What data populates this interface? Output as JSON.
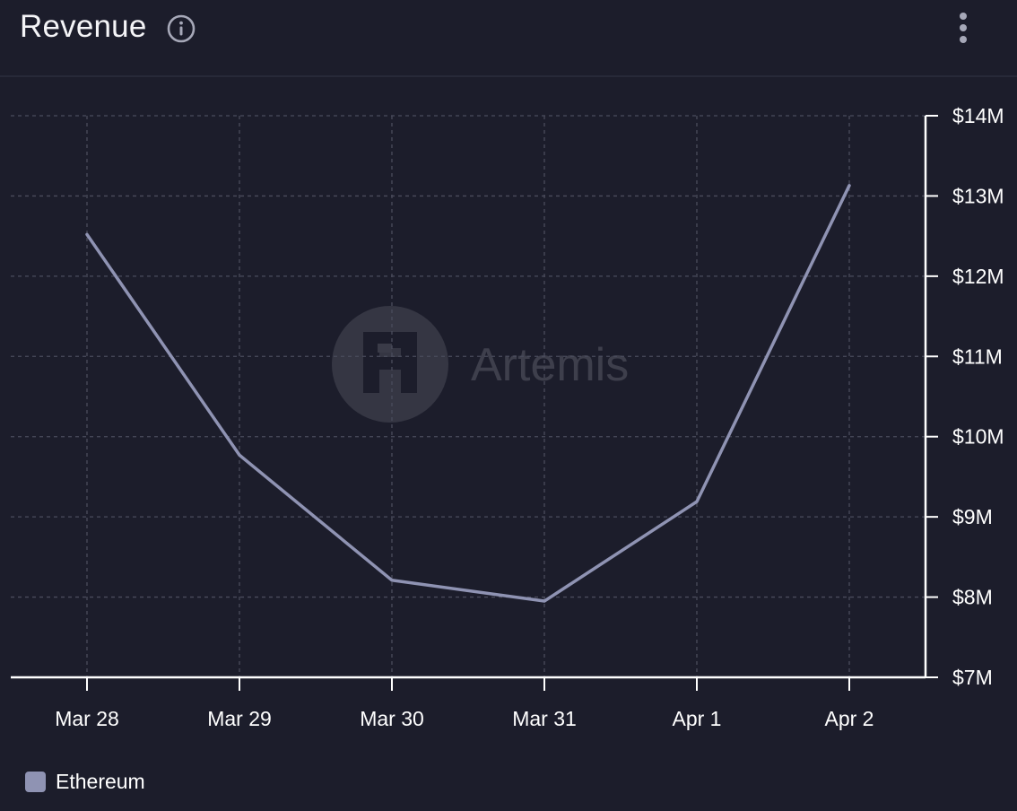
{
  "header": {
    "title": "Revenue",
    "info_icon": "info-circle-icon",
    "menu_icon": "vertical-dots-icon"
  },
  "watermark": {
    "text": "Artemis",
    "icon": "artemis-logo-icon"
  },
  "colors": {
    "background": "#1c1d2b",
    "series": "#8f93b3",
    "axis": "#ffffff",
    "grid": "#4a4c5c",
    "text": "#ffffff"
  },
  "chart_data": {
    "type": "line",
    "title": "Revenue",
    "xlabel": "",
    "ylabel": "",
    "x": [
      "Mar 28",
      "Mar 29",
      "Mar 30",
      "Mar 31",
      "Apr 1",
      "Apr 2"
    ],
    "series": [
      {
        "name": "Ethereum",
        "values": [
          12.52,
          9.77,
          8.21,
          7.95,
          9.19,
          13.13
        ]
      }
    ],
    "y_unit": "M USD",
    "ylim": [
      7,
      14
    ],
    "y_ticks": [
      "$7M",
      "$8M",
      "$9M",
      "$10M",
      "$11M",
      "$12M",
      "$13M",
      "$14M"
    ],
    "y_tick_values": [
      7,
      8,
      9,
      10,
      11,
      12,
      13,
      14
    ],
    "y_axis_side": "right",
    "grid": true,
    "grid_style": "dashed",
    "legend": "bottom-left"
  },
  "legend": {
    "items": [
      {
        "label": "Ethereum",
        "color": "#8f93b3"
      }
    ]
  }
}
